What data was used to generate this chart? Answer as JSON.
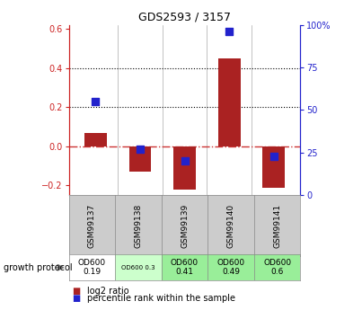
{
  "title": "GDS2593 / 3157",
  "samples": [
    "GSM99137",
    "GSM99138",
    "GSM99139",
    "GSM99140",
    "GSM99141"
  ],
  "log2_ratio": [
    0.07,
    -0.13,
    -0.22,
    0.45,
    -0.21
  ],
  "percentile_rank": [
    55,
    27,
    20,
    96,
    23
  ],
  "ylim_left": [
    -0.25,
    0.62
  ],
  "ylim_right": [
    0,
    100
  ],
  "yticks_left": [
    -0.2,
    0.0,
    0.2,
    0.4,
    0.6
  ],
  "yticks_right": [
    0,
    25,
    50,
    75,
    100
  ],
  "ytick_labels_right": [
    "0",
    "25",
    "50",
    "75",
    "100%"
  ],
  "hlines": [
    0.2,
    0.4
  ],
  "bar_color": "#aa2222",
  "dot_color": "#2222cc",
  "zero_line_color": "#cc3333",
  "hline_color": "#000000",
  "bg_color": "#ffffff",
  "plot_bg": "#ffffff",
  "label_bg_gray": "#cccccc",
  "growth_protocol_labels": [
    "OD600\n0.19",
    "OD600 0.3",
    "OD600\n0.41",
    "OD600\n0.49",
    "OD600\n0.6"
  ],
  "growth_bg_colors": [
    "#ffffff",
    "#ccffcc",
    "#99ee99",
    "#99ee99",
    "#99ee99"
  ],
  "growth_text_small": [
    false,
    true,
    false,
    false,
    false
  ],
  "legend_log2": "log2 ratio",
  "legend_pct": "percentile rank within the sample",
  "growth_protocol_text": "growth protocol",
  "bar_width": 0.5,
  "dot_size": 40
}
